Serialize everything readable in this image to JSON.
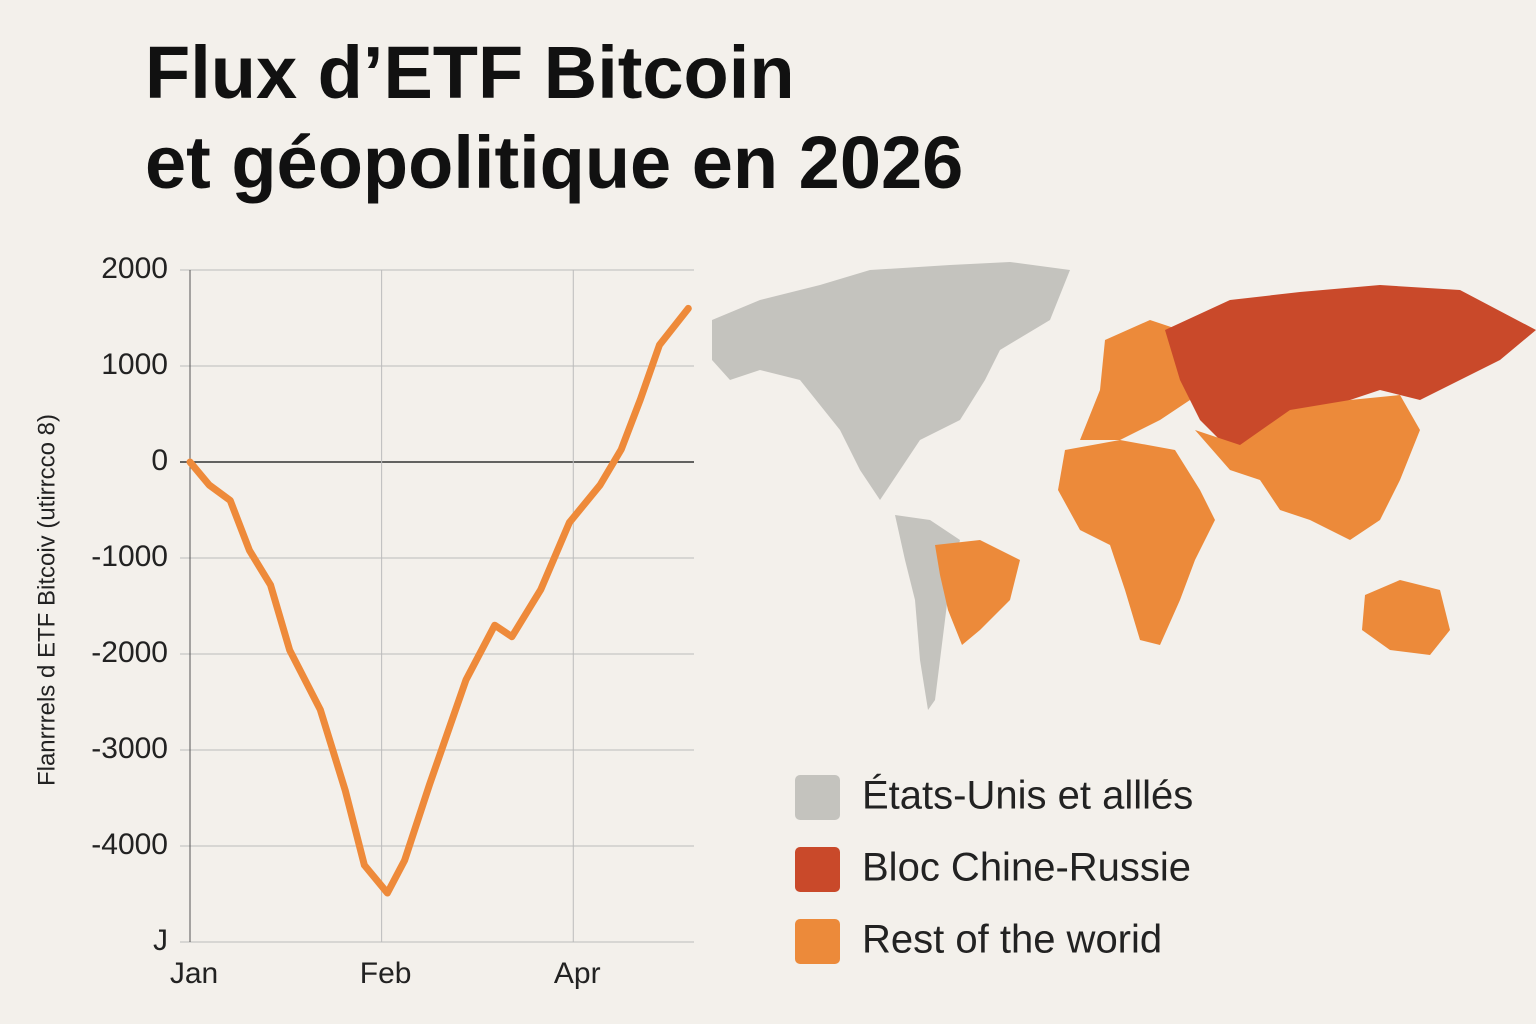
{
  "chart_data": [
    {
      "type": "line",
      "title": "Flux d’ETF Bitcoin\net géopolitique en 2026",
      "y_label": "Flanrrrels d ETF Bitcoiv (utirrcco 8)",
      "xlim": [
        0,
        2.63
      ],
      "xticks": [
        {
          "value": 0,
          "label": "Jan"
        },
        {
          "value": 1,
          "label": "Feb"
        },
        {
          "value": 2,
          "label": "Apr"
        }
      ],
      "ylim": [
        -5000,
        2000
      ],
      "yticks": [
        2000,
        1000,
        0,
        -1000,
        -2000,
        -3000,
        -4000,
        {
          "value": -5000,
          "label": "J"
        }
      ],
      "grid": true,
      "series": [
        {
          "color": "#ee8a3a",
          "x": [
            0,
            0.1,
            0.21,
            0.31,
            0.42,
            0.52,
            0.68,
            0.81,
            0.91,
            1.03,
            1.12,
            1.25,
            1.44,
            1.59,
            1.68,
            1.83,
            1.98,
            2.14,
            2.25,
            2.35,
            2.45,
            2.6
          ],
          "values": [
            0,
            -240,
            -400,
            -920,
            -1280,
            -1960,
            -2580,
            -3420,
            -4200,
            -4490,
            -4150,
            -3360,
            -2270,
            -1700,
            -1820,
            -1330,
            -630,
            -240,
            130,
            650,
            1220,
            1600
          ]
        }
      ]
    },
    {
      "type": "map",
      "legend": [
        {
          "name": "États-Unis et alllés",
          "color": "#c4c3be"
        },
        {
          "name": "Bloc Chine-Russie",
          "color": "#c9492a"
        },
        {
          "name": "Rest of the worid",
          "color": "#ec8a3a"
        }
      ]
    }
  ]
}
